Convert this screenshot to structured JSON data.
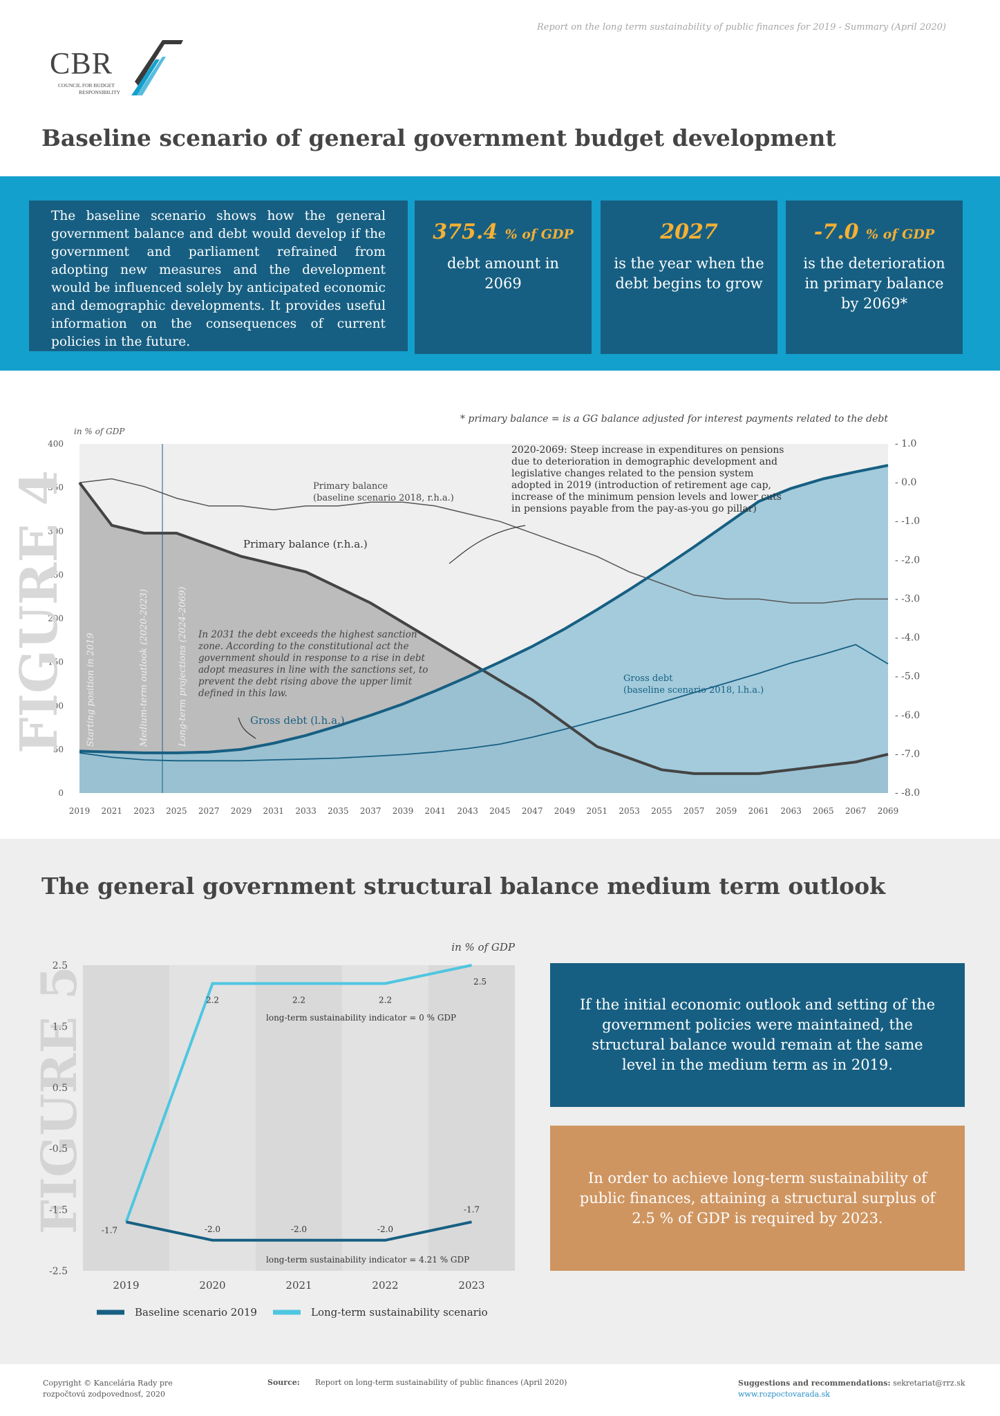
{
  "header": {
    "report_note": "Report on the long term sustainability of public finances for 2019 - Summary (April 2020)",
    "logo_text": "CBR",
    "logo_sub_1": "COUNCIL FOR BUDGET",
    "logo_sub_2": "RESPONSIBILITY",
    "logo_colors": {
      "dark": "#3a3a3a",
      "accent": "#13a0cd"
    }
  },
  "page_title": "Baseline scenario of general government budget development",
  "intro": "The baseline scenario shows how the general government balance and debt would develop if the government and parliament refrained from adopting new measures and the development would be influenced solely by anticipated economic and demographic developments. It provides useful information on the consequences of current policies in the future.",
  "kpis": [
    {
      "value": "375.4",
      "unit": "% of GDP",
      "label": "debt amount in 2069"
    },
    {
      "value": "2027",
      "unit": "",
      "label": "is the year when the debt begins to grow"
    },
    {
      "value": "-7.0",
      "unit": "% of GDP",
      "label": "is the deterioration in primary balance by 2069*"
    }
  ],
  "figure4": {
    "figure_label": "FIGURE 4",
    "footnote": "* primary balance =  is a GG balance adjusted for interest payments related to the debt",
    "left_unit": "in % of GDP",
    "left_ticks": [
      "0",
      "50",
      "100",
      "150",
      "200",
      "250",
      "300",
      "350",
      "400"
    ],
    "right_ticks": [
      "1.0",
      "0.0",
      "-1.0",
      "-2.0",
      "-3.0",
      "-4.0",
      "-5.0",
      "-6.0",
      "-7.0",
      "-8.0"
    ],
    "x_ticks": [
      "2019",
      "2021",
      "2023",
      "2025",
      "2027",
      "2029",
      "2031",
      "2033",
      "2035",
      "2037",
      "2039",
      "2041",
      "2043",
      "2045",
      "2047",
      "2049",
      "2051",
      "2053",
      "2055",
      "2057",
      "2059",
      "2061",
      "2063",
      "2065",
      "2067",
      "2069"
    ],
    "vertical_labels": [
      "Starting position in 2019",
      "Medium-term outlook (2020-2023)",
      "Long-term projections (2024-2069)"
    ],
    "annotation_pensions": [
      "2020-2069: Steep increase in expenditures on pensions",
      "due to deterioration in demographic development and",
      "legislative changes related to the pension system",
      "adopted in 2019  (introduction of retirement age cap,",
      "increase of the minimum pension levels and lower cuts",
      "in pensions payable from the pay-as-you go pillar)"
    ],
    "annotation_sanction": [
      "In 2031 the debt exceeds the highest sanction",
      "zone. According to the constitutional act the",
      "government should in response to a rise in debt",
      "adopt measures in line with the sanctions set, to",
      "prevent the debt rising above the upper limit",
      "defined in this law."
    ],
    "label_primary_2018": [
      "Primary balance",
      "(baseline scenario 2018, r.h.a.)"
    ],
    "label_primary": "Primary balance (r.h.a.)",
    "label_debt": "Gross debt (l.h.a.)",
    "label_debt_2018": [
      "Gross debt",
      "(baseline scenario 2018, l.h.a.)"
    ]
  },
  "chart_data": [
    {
      "type": "area",
      "title": "",
      "ylabel": "in % of GDP",
      "ylim": [
        0,
        400
      ],
      "y2lim": [
        -8.0,
        1.0
      ],
      "x": [
        2019,
        2021,
        2023,
        2025,
        2027,
        2029,
        2031,
        2033,
        2035,
        2037,
        2039,
        2041,
        2043,
        2045,
        2047,
        2049,
        2051,
        2053,
        2055,
        2057,
        2059,
        2061,
        2063,
        2065,
        2067,
        2069
      ],
      "series": [
        {
          "name": "Gross debt (l.h.a.)",
          "axis": "left",
          "values": [
            48,
            47,
            46,
            46,
            47,
            50,
            57,
            66,
            77,
            89,
            102,
            117,
            133,
            150,
            168,
            188,
            210,
            233,
            257,
            282,
            308,
            334,
            349,
            360,
            368,
            375.4
          ]
        },
        {
          "name": "Gross debt (baseline scenario 2018, l.h.a.)",
          "axis": "left",
          "values": [
            46,
            41,
            38,
            37,
            37,
            37,
            38,
            39,
            40,
            42,
            44,
            47,
            51,
            56,
            64,
            73,
            83,
            93,
            104,
            115,
            126,
            137,
            149,
            159,
            170,
            148
          ]
        },
        {
          "name": "Primary balance (r.h.a.)",
          "axis": "right",
          "values": [
            0.0,
            -1.1,
            -1.3,
            -1.3,
            -1.6,
            -1.9,
            -2.1,
            -2.3,
            -2.7,
            -3.1,
            -3.6,
            -4.1,
            -4.6,
            -5.1,
            -5.6,
            -6.2,
            -6.8,
            -7.1,
            -7.4,
            -7.5,
            -7.5,
            -7.5,
            -7.4,
            -7.3,
            -7.2,
            -7.0
          ]
        },
        {
          "name": "Primary balance (baseline scenario 2018, r.h.a.)",
          "axis": "right",
          "values": [
            0.0,
            0.1,
            -0.1,
            -0.4,
            -0.6,
            -0.6,
            -0.7,
            -0.6,
            -0.6,
            -0.5,
            -0.5,
            -0.6,
            -0.8,
            -1.0,
            -1.3,
            -1.6,
            -1.9,
            -2.3,
            -2.6,
            -2.9,
            -3.0,
            -3.0,
            -3.1,
            -3.1,
            -3.0,
            -3.0
          ]
        }
      ]
    },
    {
      "type": "line",
      "title": "",
      "ylabel": "in % of GDP",
      "categories": [
        "2019",
        "2020",
        "2021",
        "2022",
        "2023"
      ],
      "ylim": [
        -2.5,
        2.5
      ],
      "series": [
        {
          "name": "Baseline scenario 2019",
          "values": [
            -1.7,
            -2.0,
            -2.0,
            -2.0,
            -1.7
          ]
        },
        {
          "name": "Long-term sustainability scenario",
          "values": [
            -1.7,
            2.2,
            2.2,
            2.2,
            2.5
          ]
        }
      ]
    }
  ],
  "figure5": {
    "figure_label": "FIGURE 5",
    "unit": "in % of GDP",
    "y_ticks": [
      "2.5",
      "1.5",
      "0.5",
      "-0.5",
      "-1.5",
      "-2.5"
    ],
    "categories": [
      "2019",
      "2020",
      "2021",
      "2022",
      "2023"
    ],
    "labels_sust": [
      "2.2",
      "2.2",
      "2.2",
      "2.5"
    ],
    "labels_base": [
      "-1.7",
      "-2.0",
      "-2.0",
      "-2.0",
      "-1.7"
    ],
    "indicator_top": "long-term sustainability indicator = 0 % GDP",
    "indicator_bottom": "long-term sustainability indicator = 4.21 % GDP",
    "legend_base": "Baseline scenario 2019",
    "legend_sust": "Long-term sustainability scenario",
    "colors": {
      "base": "#175f82",
      "sust": "#4fc6e0"
    }
  },
  "section2_title": "The general government structural balance medium term outlook",
  "messages": {
    "blue": "If the initial economic outlook and setting of the government policies were maintained, the structural balance would remain at the same level in the medium term as in 2019.",
    "tan": "In order to  achieve long-term sustainability of public finances, attaining a structural surplus of 2.5 % of GDP is required by 2023."
  },
  "footer": {
    "copy_1": "Copyright © Kancelária Rady pre",
    "copy_2": "rozpočtovú zodpovednosť, 2020",
    "source_label": "Source:",
    "source": "Report on long-term sustainability of public finances (April 2020)",
    "sugg_label": "Suggestions and recommendations:",
    "sugg_email": "sekretariat@rrz.sk",
    "url": "www.rozpoctovarada.sk"
  },
  "colors": {
    "band": "#13a0cd",
    "navy": "#175f82",
    "tan": "#cf9561",
    "gold": "#f6b034"
  }
}
